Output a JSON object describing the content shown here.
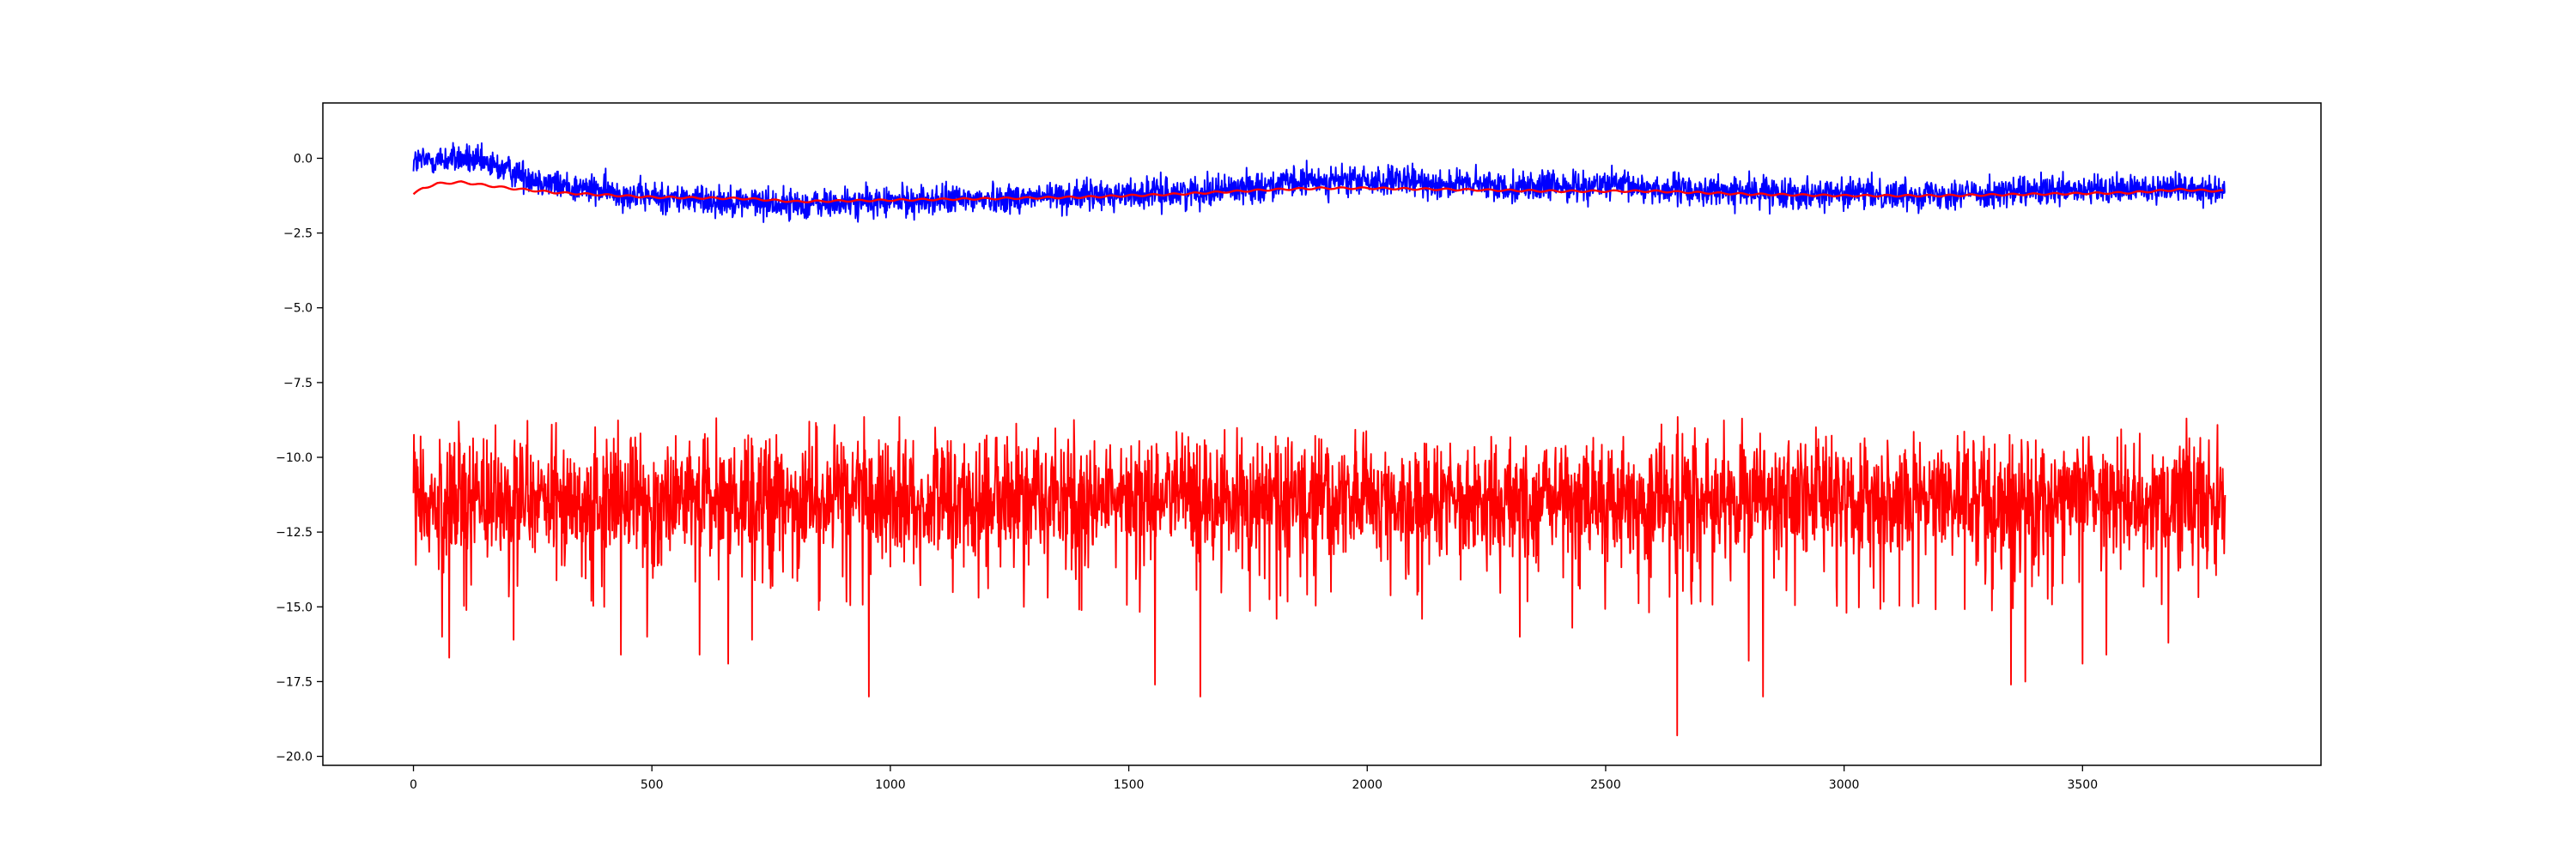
{
  "chart_data": {
    "type": "line",
    "title": "",
    "xlabel": "",
    "ylabel": "",
    "xlim": [
      -190,
      4000
    ],
    "ylim": [
      -20.3,
      1.85
    ],
    "grid": false,
    "legend": "none",
    "n_points": 3800,
    "x_ticks": [
      0,
      500,
      1000,
      1500,
      2000,
      2500,
      3000,
      3500
    ],
    "x_tick_labels": [
      "0",
      "500",
      "1000",
      "1500",
      "2000",
      "2500",
      "3000",
      "3500"
    ],
    "y_ticks": [
      0.0,
      -2.5,
      -5.0,
      -7.5,
      -10.0,
      -12.5,
      -15.0,
      -17.5,
      -20.0
    ],
    "y_tick_labels": [
      "0.0",
      "−2.5",
      "−5.0",
      "−7.5",
      "−10.0",
      "−12.5",
      "−15.0",
      "−17.5",
      "−20.0"
    ],
    "series": [
      {
        "role": "noisy-upper",
        "color": "#0000ff",
        "trend": [
          [
            0,
            -0.1
          ],
          [
            100,
            0.0
          ],
          [
            200,
            -0.4
          ],
          [
            300,
            -0.9
          ],
          [
            500,
            -1.3
          ],
          [
            700,
            -1.45
          ],
          [
            800,
            -1.55
          ],
          [
            1000,
            -1.45
          ],
          [
            1200,
            -1.35
          ],
          [
            1400,
            -1.25
          ],
          [
            1600,
            -1.15
          ],
          [
            1800,
            -0.9
          ],
          [
            1900,
            -0.75
          ],
          [
            2100,
            -0.8
          ],
          [
            2300,
            -0.95
          ],
          [
            2500,
            -0.9
          ],
          [
            2700,
            -1.1
          ],
          [
            2900,
            -1.15
          ],
          [
            3100,
            -1.2
          ],
          [
            3300,
            -1.15
          ],
          [
            3500,
            -1.1
          ],
          [
            3700,
            -0.95
          ],
          [
            3799,
            -1.05
          ]
        ],
        "noise_amplitude": 0.45
      },
      {
        "role": "smooth-upper",
        "color": "#ff0000",
        "values": [
          [
            0,
            -1.2
          ],
          [
            20,
            -1.0
          ],
          [
            50,
            -0.85
          ],
          [
            100,
            -0.8
          ],
          [
            150,
            -0.9
          ],
          [
            200,
            -1.0
          ],
          [
            300,
            -1.15
          ],
          [
            500,
            -1.3
          ],
          [
            700,
            -1.35
          ],
          [
            800,
            -1.45
          ],
          [
            1000,
            -1.4
          ],
          [
            1200,
            -1.35
          ],
          [
            1400,
            -1.3
          ],
          [
            1600,
            -1.2
          ],
          [
            1800,
            -1.05
          ],
          [
            1900,
            -1.0
          ],
          [
            2000,
            -1.0
          ],
          [
            2200,
            -1.05
          ],
          [
            2400,
            -1.1
          ],
          [
            2600,
            -1.1
          ],
          [
            2800,
            -1.2
          ],
          [
            3000,
            -1.25
          ],
          [
            3200,
            -1.25
          ],
          [
            3400,
            -1.2
          ],
          [
            3600,
            -1.15
          ],
          [
            3700,
            -1.05
          ],
          [
            3799,
            -1.1
          ]
        ]
      },
      {
        "role": "noisy-lower",
        "color": "#ff0000",
        "mean": -11.4,
        "noise_amplitude": 1.2,
        "max": -8.75,
        "min": -19.3,
        "spikes": [
          [
            5,
            -13.6
          ],
          [
            60,
            -16.0
          ],
          [
            75,
            -16.7
          ],
          [
            95,
            -8.8
          ],
          [
            210,
            -16.1
          ],
          [
            400,
            -15.0
          ],
          [
            435,
            -16.6
          ],
          [
            490,
            -16.0
          ],
          [
            600,
            -16.6
          ],
          [
            660,
            -16.9
          ],
          [
            710,
            -16.1
          ],
          [
            955,
            -18.0
          ],
          [
            1280,
            -15.0
          ],
          [
            1385,
            -8.75
          ],
          [
            1555,
            -17.6
          ],
          [
            1650,
            -18.0
          ],
          [
            1810,
            -15.4
          ],
          [
            2115,
            -15.4
          ],
          [
            2320,
            -16.0
          ],
          [
            2430,
            -15.7
          ],
          [
            2650,
            -19.3
          ],
          [
            2680,
            -14.9
          ],
          [
            2800,
            -16.8
          ],
          [
            2830,
            -18.0
          ],
          [
            3005,
            -15.2
          ],
          [
            3350,
            -17.6
          ],
          [
            3380,
            -17.5
          ],
          [
            3500,
            -16.9
          ],
          [
            3550,
            -16.6
          ],
          [
            3680,
            -16.2
          ]
        ]
      }
    ]
  }
}
